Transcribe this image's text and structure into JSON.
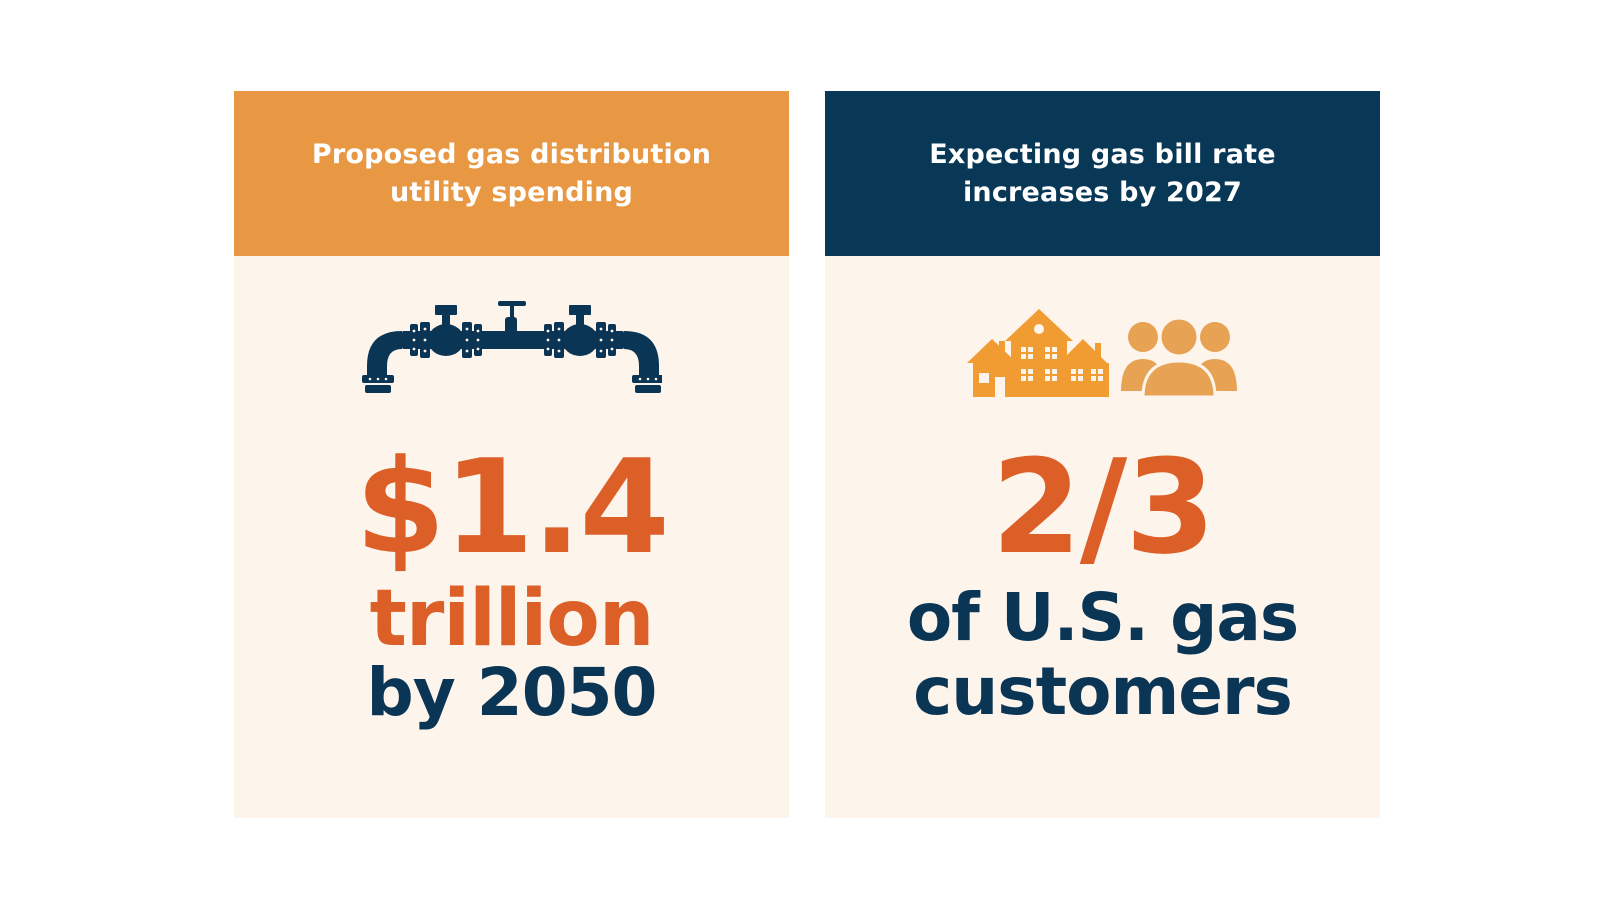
{
  "cards": [
    {
      "header_line1": "Proposed gas distribution",
      "header_line2": "utility spending",
      "icon": "pipeline-icon",
      "headline": "$1.4",
      "line1": "trillion",
      "line2": "by 2050"
    },
    {
      "header_line1": "Expecting gas bill rate",
      "header_line2": "increases by 2027",
      "icons": [
        "houses-icon",
        "people-icon"
      ],
      "headline": "2/3",
      "line1": "of U.S. gas",
      "line2": "customers"
    }
  ],
  "colors": {
    "orange_header": "#e89843",
    "navy_header": "#083856",
    "card_bg": "#fdf5ec",
    "accent_orange": "#dc5f27",
    "navy_text": "#0b3555",
    "icon_orange": "#f19b33",
    "icon_tan": "#e8a253"
  }
}
